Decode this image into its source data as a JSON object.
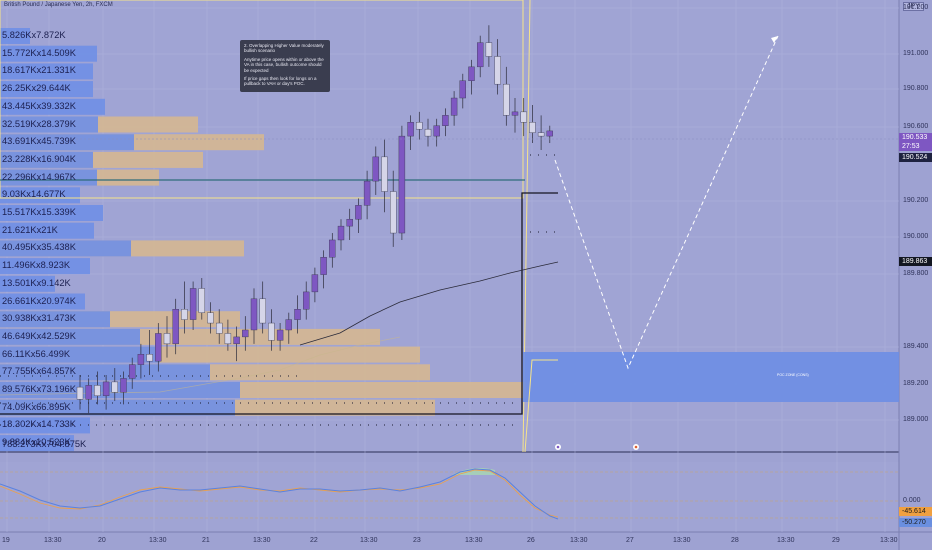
{
  "header": {
    "symbol": "British Pound / Japanese Yen, 2h, FXCM",
    "currency": "JPY"
  },
  "annotation": {
    "paragraphs": [
      "2. Overlapping Higher Value moderately bullish scenario",
      "Anytime price opens within or above the VA in this case, bullish outcome should be expected",
      "If price gaps then look for longs on a pullback to VAH or day's POC."
    ]
  },
  "volume_profile": {
    "labels": [
      "5.826Kx7.872K",
      "15.772Kx14.509K",
      "18.617Kx21.331K",
      "26.25Kx29.644K",
      "43.445Kx39.332K",
      "32.519Kx28.379K",
      "43.691Kx45.739K",
      "23.228Kx16.904K",
      "22.296Kx14.967K",
      "9.03Kx14.677K",
      "15.517Kx15.339K",
      "21.621Kx21K",
      "40.495Kx35.438K",
      "11.496Kx8.923K",
      "13.501Kx9.142K",
      "26.661Kx20.974K",
      "30.938Kx31.473K",
      "46.649Kx42.529K",
      "66.11Kx56.499K",
      "77.755Kx64.857K",
      "89.576Kx73.196K",
      "74.09Kx66.895K",
      "18.302Kx14.733K",
      "9.884Kx10.523K"
    ],
    "total": "783.273Kx704.875K"
  },
  "price_axis": {
    "ticks": [
      "191.200",
      "191.000",
      "190.800",
      "190.600",
      "190.200",
      "190.000",
      "189.800",
      "189.400",
      "189.200",
      "189.000"
    ],
    "tags": [
      {
        "text": "190.533",
        "bg": "#7e57c2",
        "color": "#ffffff"
      },
      {
        "text": "27:53",
        "bg": "#7e57c2",
        "color": "#ffffff"
      },
      {
        "text": "190.524",
        "bg": "#1e2240",
        "color": "#ffffff"
      },
      {
        "text": "189.863",
        "bg": "#131722",
        "color": "#ffffff"
      }
    ]
  },
  "poc_zone_label": "POC ZONE (CONS)",
  "oscillator": {
    "ticks": [
      "0.000"
    ],
    "tags": [
      {
        "text": "-45.614",
        "bg": "#f0a040",
        "color": "#1c1c1c"
      },
      {
        "text": "-50.270",
        "bg": "#6a8fe0",
        "color": "#1c1c1c"
      }
    ]
  },
  "time_axis": [
    "19",
    "13:30",
    "20",
    "13:30",
    "21",
    "13:30",
    "22",
    "13:30",
    "23",
    "13:30",
    "26",
    "13:30",
    "27",
    "13:30",
    "28",
    "13:30",
    "29",
    "13:30"
  ],
  "colors": {
    "bull": "#7e57c2",
    "bear": "#d5d5e8",
    "vp_blue": "#6f8fe6",
    "vp_tan": "#d8b98d",
    "projection": "#ffffff",
    "poc_zone": "#6d8ee4"
  },
  "chart_data": {
    "type": "candlestick",
    "title": "British Pound / Japanese Yen, 2h, FXCM",
    "ylim": [
      188.86,
      191.24
    ],
    "candles": [
      [
        189.05,
        189.12,
        188.92,
        188.98
      ],
      [
        188.98,
        189.1,
        188.9,
        189.06
      ],
      [
        189.06,
        189.14,
        188.95,
        189.0
      ],
      [
        189.0,
        189.12,
        188.92,
        189.08
      ],
      [
        189.08,
        189.16,
        188.97,
        189.02
      ],
      [
        189.02,
        189.14,
        188.95,
        189.1
      ],
      [
        189.1,
        189.22,
        189.04,
        189.18
      ],
      [
        189.18,
        189.3,
        189.1,
        189.24
      ],
      [
        189.24,
        189.38,
        189.12,
        189.2
      ],
      [
        189.2,
        189.42,
        189.14,
        189.36
      ],
      [
        189.36,
        189.46,
        189.22,
        189.3
      ],
      [
        189.3,
        189.56,
        189.24,
        189.5
      ],
      [
        189.5,
        189.66,
        189.36,
        189.44
      ],
      [
        189.44,
        189.66,
        189.38,
        189.62
      ],
      [
        189.62,
        189.68,
        189.44,
        189.48
      ],
      [
        189.48,
        189.54,
        189.36,
        189.42
      ],
      [
        189.42,
        189.5,
        189.3,
        189.36
      ],
      [
        189.36,
        189.44,
        189.26,
        189.3
      ],
      [
        189.3,
        189.4,
        189.2,
        189.34
      ],
      [
        189.34,
        189.46,
        189.26,
        189.38
      ],
      [
        189.38,
        189.62,
        189.3,
        189.56
      ],
      [
        189.56,
        189.66,
        189.36,
        189.42
      ],
      [
        189.42,
        189.5,
        189.26,
        189.32
      ],
      [
        189.32,
        189.42,
        189.26,
        189.38
      ],
      [
        189.38,
        189.48,
        189.3,
        189.44
      ],
      [
        189.44,
        189.58,
        189.36,
        189.5
      ],
      [
        189.5,
        189.66,
        189.44,
        189.6
      ],
      [
        189.6,
        189.74,
        189.54,
        189.7
      ],
      [
        189.7,
        189.84,
        189.62,
        189.8
      ],
      [
        189.8,
        189.94,
        189.74,
        189.9
      ],
      [
        189.9,
        190.02,
        189.84,
        189.98
      ],
      [
        189.98,
        190.08,
        189.9,
        190.02
      ],
      [
        190.02,
        190.14,
        189.94,
        190.1
      ],
      [
        190.1,
        190.3,
        190.02,
        190.24
      ],
      [
        190.24,
        190.44,
        190.16,
        190.38
      ],
      [
        190.38,
        190.48,
        190.06,
        190.18
      ],
      [
        190.18,
        190.3,
        189.86,
        189.94
      ],
      [
        189.94,
        190.56,
        189.9,
        190.5
      ],
      [
        190.5,
        190.62,
        190.42,
        190.58
      ],
      [
        190.58,
        190.64,
        190.48,
        190.54
      ],
      [
        190.54,
        190.6,
        190.44,
        190.5
      ],
      [
        190.5,
        190.6,
        190.44,
        190.56
      ],
      [
        190.56,
        190.66,
        190.5,
        190.62
      ],
      [
        190.62,
        190.76,
        190.56,
        190.72
      ],
      [
        190.72,
        190.86,
        190.66,
        190.82
      ],
      [
        190.82,
        190.94,
        190.74,
        190.9
      ],
      [
        190.9,
        191.08,
        190.84,
        191.04
      ],
      [
        191.04,
        191.14,
        190.9,
        190.96
      ],
      [
        190.96,
        191.06,
        190.74,
        190.8
      ],
      [
        190.8,
        190.9,
        190.56,
        190.62
      ],
      [
        190.62,
        190.72,
        190.52,
        190.64
      ],
      [
        190.64,
        190.72,
        190.5,
        190.58
      ],
      [
        190.58,
        190.68,
        190.46,
        190.52
      ],
      [
        190.52,
        190.62,
        190.42,
        190.5
      ],
      [
        190.5,
        190.56,
        190.46,
        190.53
      ]
    ]
  }
}
